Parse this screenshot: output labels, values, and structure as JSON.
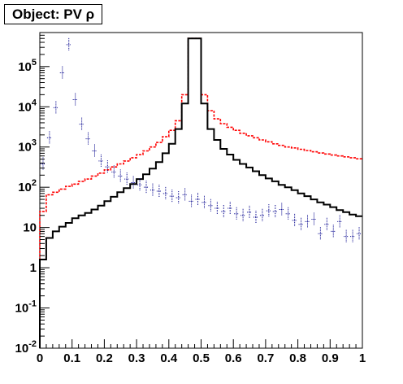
{
  "chart_data": {
    "type": "histogram",
    "title": "Object: PV ρ",
    "xlabel": "",
    "ylabel": "",
    "xlim": [
      0,
      1
    ],
    "ylim": [
      0.01,
      700000
    ],
    "y_scale": "log",
    "grid": false,
    "legend": "none",
    "x_ticks": [
      0,
      0.1,
      0.2,
      0.3,
      0.4,
      0.5,
      0.6,
      0.7,
      0.8,
      0.9,
      1
    ],
    "x_tick_labels": [
      "0",
      "0.1",
      "0.2",
      "0.3",
      "0.4",
      "0.5",
      "0.6",
      "0.7",
      "0.8",
      "0.9",
      "1"
    ],
    "y_ticks": [
      0.01,
      0.1,
      1,
      10,
      100,
      1000,
      10000,
      100000
    ],
    "y_tick_labels": [
      {
        "base": "10",
        "exp": "-2"
      },
      {
        "base": "10",
        "exp": "-1"
      },
      {
        "base": "1",
        "exp": ""
      },
      {
        "base": "10",
        "exp": ""
      },
      {
        "base": "10",
        "exp": "2"
      },
      {
        "base": "10",
        "exp": "3"
      },
      {
        "base": "10",
        "exp": "4"
      },
      {
        "base": "10",
        "exp": "5"
      }
    ],
    "bin_width": 0.02,
    "series": [
      {
        "style": "histogram-solid",
        "color": "#000000",
        "values": [
          1.6,
          5.5,
          8,
          10.5,
          13,
          17,
          20,
          23,
          28,
          35,
          45,
          58,
          75,
          95,
          120,
          160,
          210,
          290,
          420,
          700,
          1200,
          2800,
          12000,
          500000,
          500000,
          12000,
          2800,
          1500,
          900,
          650,
          480,
          380,
          310,
          250,
          200,
          165,
          140,
          115,
          100,
          85,
          70,
          60,
          50,
          42,
          37,
          32,
          27,
          24,
          21,
          19
        ]
      },
      {
        "style": "histogram-dashed",
        "color": "#ff0000",
        "values": [
          25,
          65,
          75,
          90,
          105,
          120,
          140,
          160,
          190,
          225,
          270,
          320,
          380,
          450,
          540,
          650,
          800,
          1000,
          1300,
          1800,
          2600,
          4500,
          20000,
          500000,
          500000,
          20000,
          8000,
          5000,
          3800,
          3100,
          2600,
          2200,
          1900,
          1700,
          1500,
          1350,
          1200,
          1100,
          1000,
          950,
          880,
          820,
          760,
          710,
          670,
          630,
          600,
          570,
          540,
          510
        ]
      },
      {
        "style": "points-error",
        "color": "#00008b",
        "values": [
          380,
          1700,
          9500,
          70000,
          350000,
          15000,
          3700,
          1600,
          800,
          450,
          320,
          240,
          190,
          160,
          130,
          115,
          100,
          85,
          80,
          70,
          60,
          55,
          65,
          45,
          50,
          42,
          35,
          30,
          25,
          30,
          22,
          20,
          24,
          18,
          20,
          26,
          25,
          28,
          22,
          15,
          12,
          14,
          16,
          7,
          12,
          8,
          14,
          6,
          6,
          7
        ]
      }
    ]
  }
}
